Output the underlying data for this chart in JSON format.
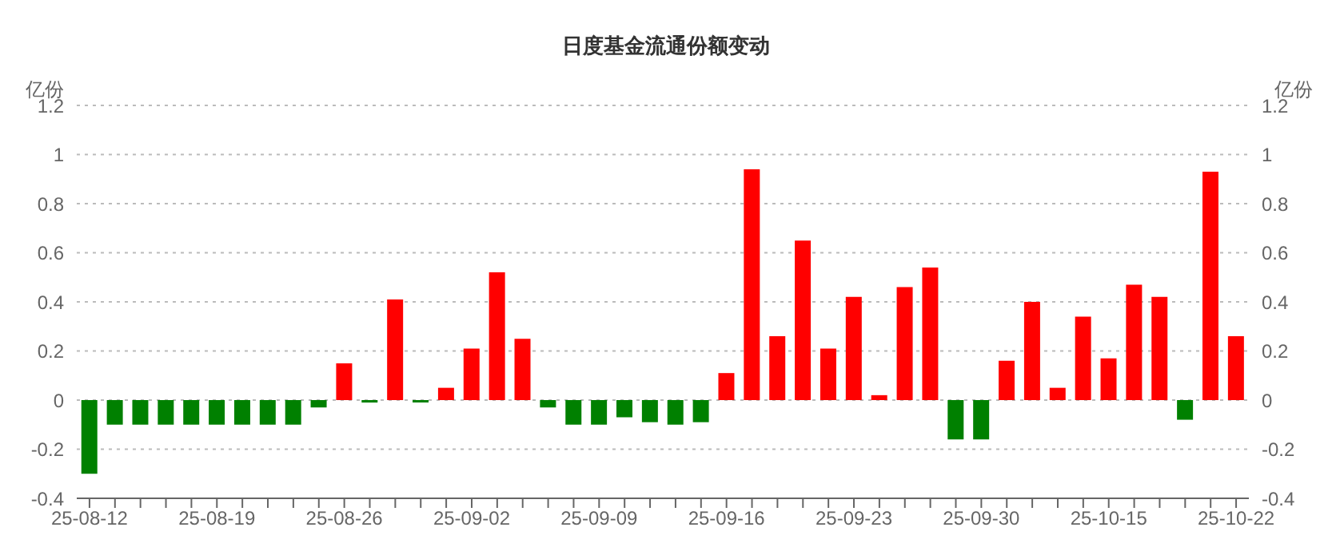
{
  "chart_data": {
    "type": "bar",
    "title": "日度基金流通份额变动",
    "ylabel": "亿份",
    "y2label": "亿份",
    "categories": [
      "25-08-12",
      null,
      null,
      null,
      null,
      "25-08-19",
      null,
      null,
      null,
      null,
      "25-08-26",
      null,
      null,
      null,
      null,
      "25-09-02",
      null,
      null,
      null,
      null,
      "25-09-09",
      null,
      null,
      null,
      null,
      "25-09-16",
      null,
      null,
      null,
      null,
      "25-09-23",
      null,
      null,
      null,
      null,
      "25-09-30",
      null,
      null,
      null,
      null,
      "25-10-15",
      null,
      null,
      null,
      null,
      "25-10-22"
    ],
    "values": [
      -0.3,
      -0.1,
      -0.1,
      -0.1,
      -0.1,
      -0.1,
      -0.1,
      -0.1,
      -0.1,
      -0.03,
      0.15,
      -0.01,
      0.41,
      -0.01,
      0.05,
      0.21,
      0.52,
      0.25,
      -0.03,
      -0.1,
      -0.1,
      -0.07,
      -0.09,
      -0.1,
      -0.09,
      0.11,
      0.94,
      0.26,
      0.65,
      0.21,
      0.42,
      0.02,
      0.46,
      0.54,
      -0.16,
      -0.16,
      0.16,
      0.4,
      0.05,
      0.34,
      0.17,
      0.47,
      0.42,
      -0.08,
      0.93,
      0.26
    ],
    "colors": [
      "#008000",
      "#008000",
      "#008000",
      "#008000",
      "#008000",
      "#008000",
      "#008000",
      "#008000",
      "#008000",
      "#008000",
      "#ff0000",
      "#008000",
      "#ff0000",
      "#008000",
      "#ff0000",
      "#ff0000",
      "#ff0000",
      "#ff0000",
      "#008000",
      "#008000",
      "#008000",
      "#008000",
      "#008000",
      "#008000",
      "#008000",
      "#ff0000",
      "#ff0000",
      "#ff0000",
      "#ff0000",
      "#ff0000",
      "#ff0000",
      "#ff0000",
      "#ff0000",
      "#ff0000",
      "#008000",
      "#008000",
      "#ff0000",
      "#ff0000",
      "#ff0000",
      "#ff0000",
      "#ff0000",
      "#ff0000",
      "#ff0000",
      "#008000",
      "#ff0000",
      "#ff0000"
    ],
    "ylim": [
      -0.4,
      1.2
    ],
    "yticks": [
      -0.4,
      -0.2,
      0,
      0.2,
      0.4,
      0.6,
      0.8,
      1,
      1.2
    ],
    "y2lim": [
      -0.4,
      1.2
    ],
    "y2ticks": [
      -0.4,
      -0.2,
      0,
      0.2,
      0.4,
      0.6,
      0.8,
      1,
      1.2
    ],
    "grid": "y",
    "legend": false
  }
}
